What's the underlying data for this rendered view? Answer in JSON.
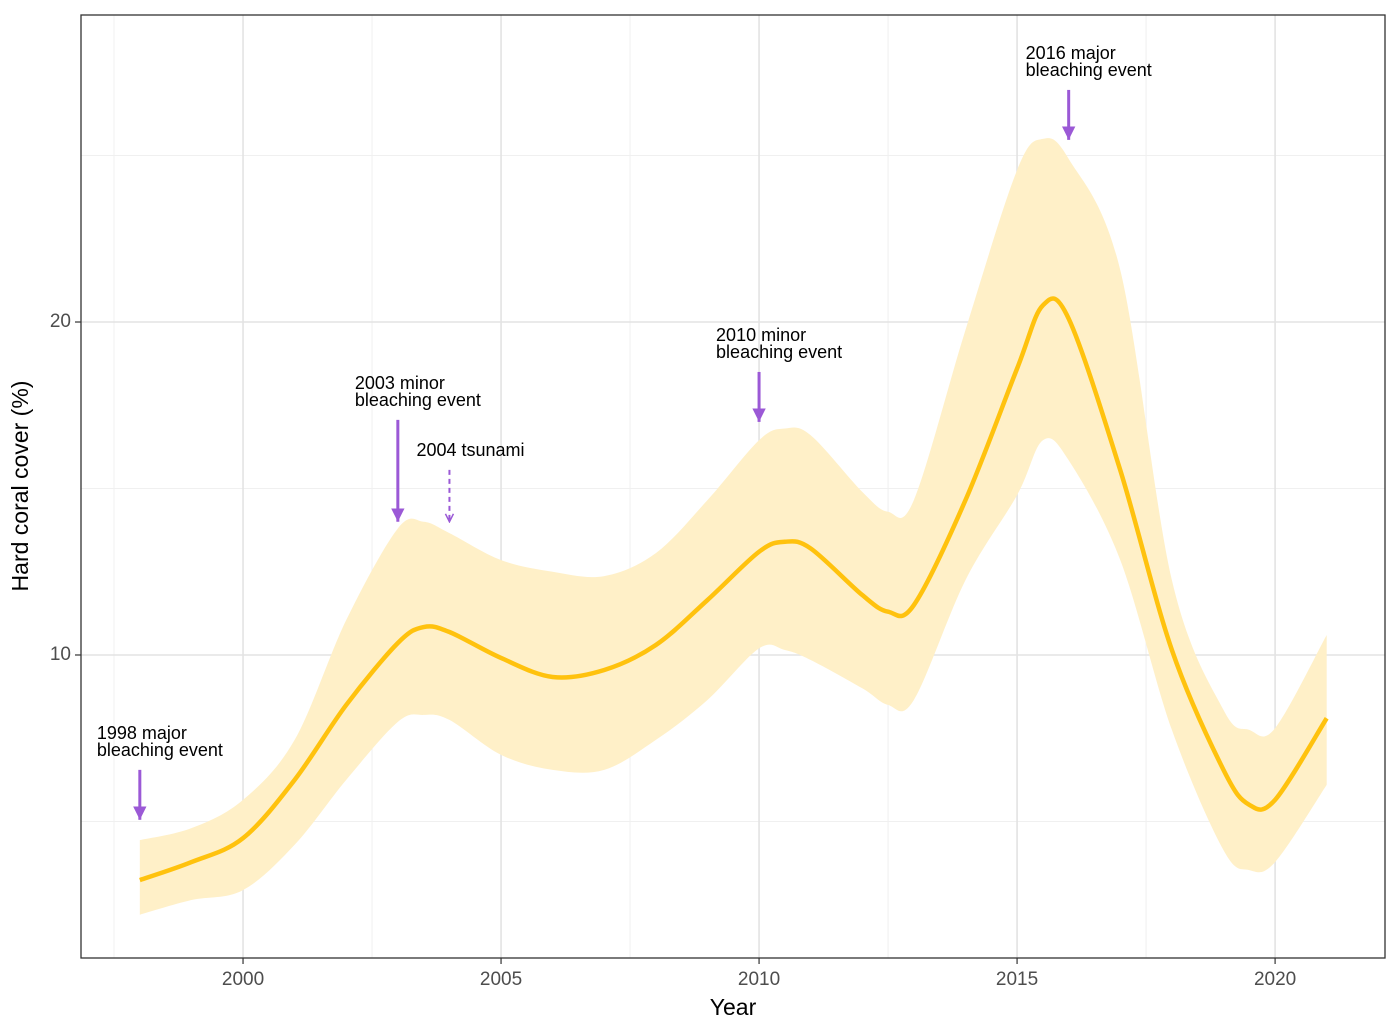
{
  "chart_data": {
    "type": "line",
    "xlabel": "Year",
    "ylabel": "Hard coral cover (%)",
    "x": [
      1998,
      1999,
      2000,
      2001,
      2002,
      2003,
      2003.5,
      2004,
      2005,
      2006,
      2007,
      2008,
      2009,
      2010,
      2010.5,
      2011,
      2012,
      2012.5,
      2013,
      2014,
      2015,
      2015.5,
      2016,
      2017,
      2018,
      2019,
      2019.5,
      2020,
      2021
    ],
    "series": [
      {
        "color": "#ffc20e",
        "values": [
          3.24,
          3.78,
          4.5,
          6.25,
          8.5,
          10.36,
          10.84,
          10.69,
          9.91,
          9.34,
          9.55,
          10.3,
          11.65,
          13.1,
          13.4,
          13.2,
          11.8,
          11.3,
          11.5,
          14.65,
          18.6,
          20.5,
          20.1,
          15.55,
          10.15,
          6.55,
          5.5,
          5.65,
          8.1
        ]
      }
    ],
    "band": {
      "color": "#fff0c8",
      "upper": [
        4.44,
        4.8,
        5.65,
        7.45,
        11.05,
        13.8,
        14.0,
        13.66,
        12.85,
        12.5,
        12.37,
        13.06,
        14.65,
        16.45,
        16.8,
        16.6,
        14.9,
        14.3,
        14.65,
        19.76,
        24.56,
        25.5,
        24.9,
        21.56,
        12.25,
        8.35,
        7.75,
        7.8,
        10.6
      ],
      "lower": [
        2.2,
        2.64,
        2.94,
        4.3,
        6.25,
        7.99,
        8.2,
        8.05,
        7.0,
        6.55,
        6.55,
        7.45,
        8.65,
        10.2,
        10.15,
        9.85,
        9.0,
        8.5,
        8.65,
        12.25,
        14.8,
        16.45,
        15.85,
        12.85,
        7.75,
        4.14,
        3.54,
        3.78,
        6.1
      ]
    },
    "xlim": [
      1996.86,
      2022.13
    ],
    "ylim": [
      0.9,
      29.22
    ],
    "xticks": [
      2000,
      2005,
      2010,
      2015,
      2020
    ],
    "yticks": [
      10,
      20
    ],
    "minor_xticks": [
      1997.5,
      2002.5,
      2007.5,
      2012.5,
      2017.5
    ],
    "minor_yticks": [
      5,
      15,
      25
    ],
    "grid": true,
    "annotation_color": "#9b59d6",
    "annotations": [
      {
        "label": [
          "1998 major",
          "bleaching event"
        ],
        "x": 1998,
        "y": 5.05,
        "y_from": 6.55,
        "dashed": false
      },
      {
        "label": [
          "2003 minor",
          "bleaching event"
        ],
        "x": 2003,
        "y": 14.0,
        "y_from": 17.06,
        "dashed": false
      },
      {
        "label": [
          "2004 tsunami"
        ],
        "x": 2004,
        "y": 14.0,
        "y_from": 15.56,
        "dashed": true
      },
      {
        "label": [
          "2010 minor",
          "bleaching event"
        ],
        "x": 2010,
        "y": 17.0,
        "y_from": 18.5,
        "dashed": false
      },
      {
        "label": [
          "2016 major",
          "bleaching event"
        ],
        "x": 2016,
        "y": 25.47,
        "y_from": 26.97,
        "dashed": false
      }
    ]
  }
}
